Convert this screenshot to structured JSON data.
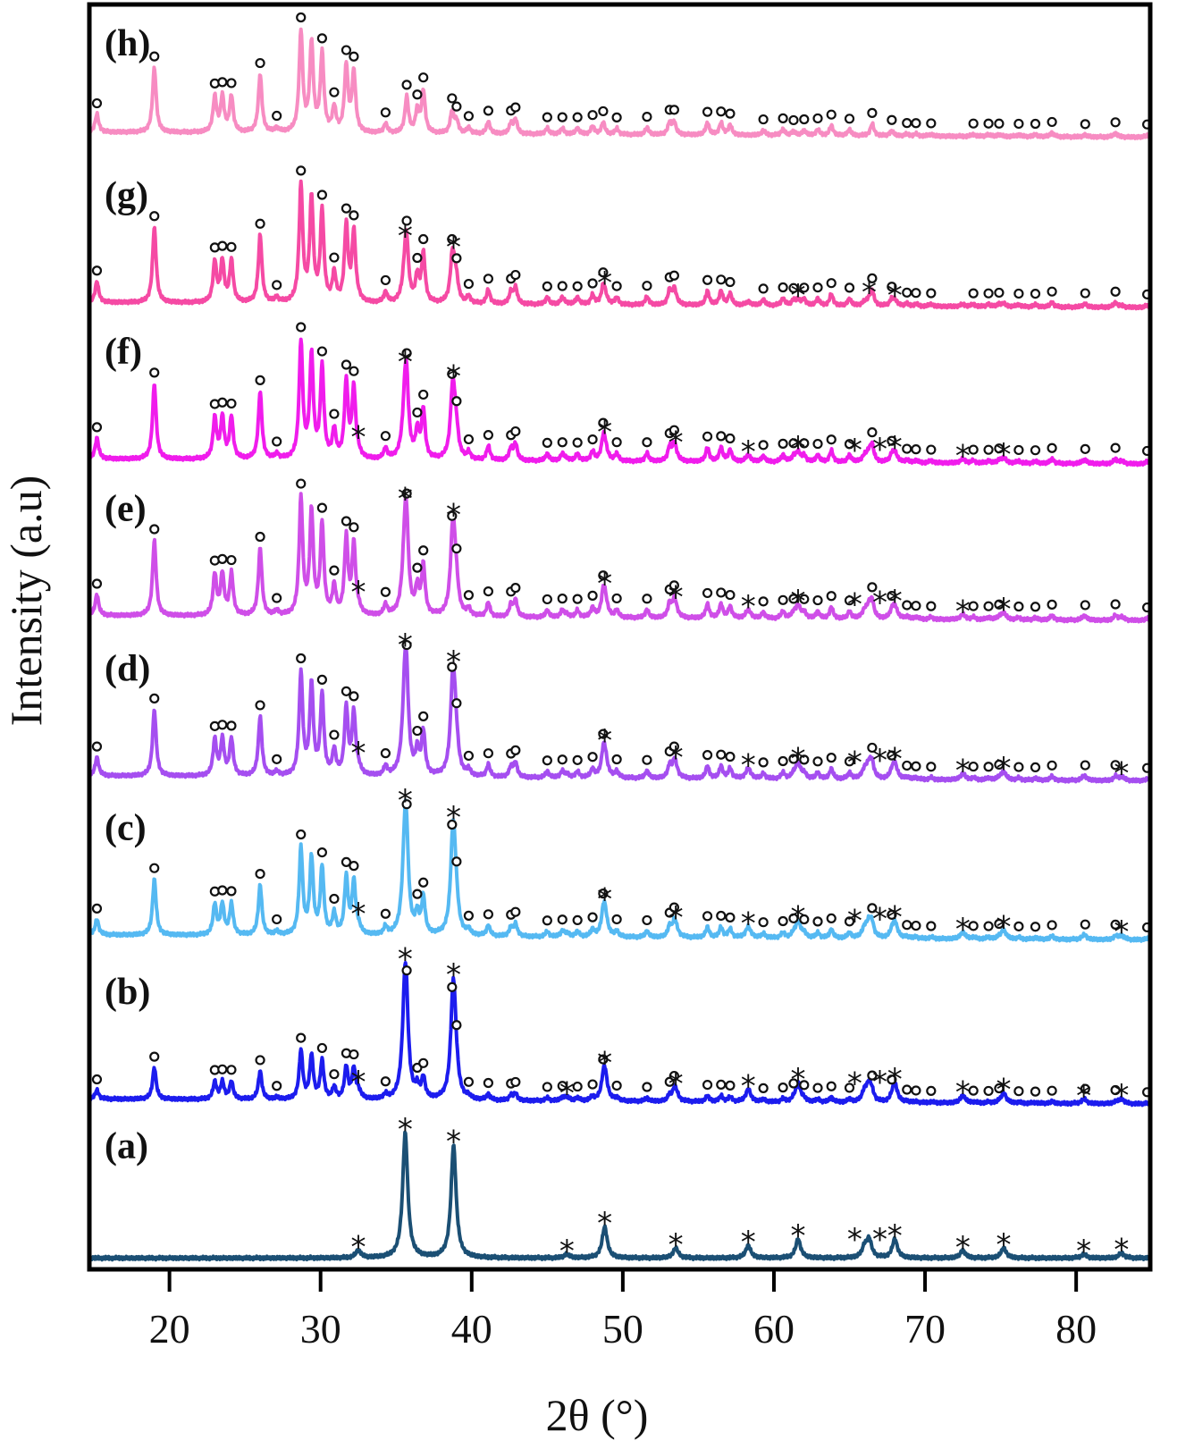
{
  "chart_data": {
    "type": "line",
    "xlabel": "2θ (°)",
    "ylabel": "Intensity (a.u)",
    "xlim": [
      14.7,
      84.9
    ],
    "ylim": [
      0,
      10.1
    ],
    "x_ticks": [
      20,
      30,
      40,
      50,
      60,
      70,
      80
    ],
    "x_tick_labels": [
      "20",
      "30",
      "40",
      "50",
      "60",
      "70",
      "80"
    ],
    "y_ticks": [],
    "grid": false,
    "legend": "none",
    "phases": [
      {
        "id": "star",
        "marker": "*",
        "peaks": [
          [
            32.5,
            0.06
          ],
          [
            35.6,
            1.0
          ],
          [
            38.8,
            0.9
          ],
          [
            46.3,
            0.03
          ],
          [
            48.8,
            0.25
          ],
          [
            53.5,
            0.08
          ],
          [
            58.3,
            0.1
          ],
          [
            61.6,
            0.15
          ],
          [
            66.0,
            0.08
          ],
          [
            66.3,
            0.14
          ],
          [
            68.0,
            0.15
          ],
          [
            72.5,
            0.06
          ],
          [
            75.2,
            0.08
          ],
          [
            80.5,
            0.03
          ],
          [
            83.0,
            0.04
          ]
        ]
      },
      {
        "id": "circle",
        "marker": "o",
        "peaks": [
          [
            15.2,
            0.18
          ],
          [
            19.0,
            0.65
          ],
          [
            23.0,
            0.35
          ],
          [
            23.5,
            0.35
          ],
          [
            24.1,
            0.36
          ],
          [
            26.0,
            0.58
          ],
          [
            27.1,
            0.04
          ],
          [
            28.7,
            1.0
          ],
          [
            29.4,
            0.88,
            false
          ],
          [
            30.1,
            0.78
          ],
          [
            30.9,
            0.24
          ],
          [
            31.7,
            0.66
          ],
          [
            32.2,
            0.6
          ],
          [
            34.3,
            0.09
          ],
          [
            35.7,
            0.36
          ],
          [
            36.4,
            0.22
          ],
          [
            36.8,
            0.42
          ],
          [
            38.7,
            0.22
          ],
          [
            39.0,
            0.12
          ],
          [
            39.8,
            0.06
          ],
          [
            41.1,
            0.12
          ],
          [
            42.6,
            0.1
          ],
          [
            42.9,
            0.14
          ],
          [
            45.0,
            0.06
          ],
          [
            46.0,
            0.06
          ],
          [
            47.0,
            0.06
          ],
          [
            48.0,
            0.08
          ],
          [
            48.7,
            0.12
          ],
          [
            49.6,
            0.06
          ],
          [
            51.6,
            0.07
          ],
          [
            53.1,
            0.12
          ],
          [
            53.4,
            0.12
          ],
          [
            55.6,
            0.12
          ],
          [
            56.5,
            0.12
          ],
          [
            57.1,
            0.1
          ],
          [
            59.3,
            0.05
          ],
          [
            60.6,
            0.06
          ],
          [
            61.3,
            0.04
          ],
          [
            62.0,
            0.05
          ],
          [
            62.9,
            0.06
          ],
          [
            63.8,
            0.1
          ],
          [
            65.0,
            0.06
          ],
          [
            66.5,
            0.12
          ],
          [
            67.8,
            0.05
          ],
          [
            68.8,
            0.02
          ],
          [
            69.4,
            0.02
          ],
          [
            70.4,
            0.02
          ],
          [
            73.2,
            0.02
          ],
          [
            74.2,
            0.02
          ],
          [
            74.9,
            0.02
          ],
          [
            76.2,
            0.02
          ],
          [
            77.3,
            0.02
          ],
          [
            78.4,
            0.04
          ],
          [
            80.6,
            0.02
          ],
          [
            82.6,
            0.04
          ],
          [
            84.7,
            0.02
          ]
        ]
      }
    ],
    "series": [
      {
        "name": "(a)",
        "color": "#1b4f74",
        "offset": 0.09,
        "star_scale": 1.0,
        "circle_scale": 0.0
      },
      {
        "name": "(b)",
        "color": "#1c1cee",
        "offset": 1.32,
        "star_scale": 1.0,
        "circle_scale": 0.39
      },
      {
        "name": "(c)",
        "color": "#55b9f2",
        "offset": 2.63,
        "star_scale": 0.88,
        "circle_scale": 0.69
      },
      {
        "name": "(d)",
        "color": "#a54ef0",
        "offset": 3.9,
        "star_scale": 0.82,
        "circle_scale": 0.82
      },
      {
        "name": "(e)",
        "color": "#cf4ee8",
        "offset": 5.18,
        "star_scale": 0.68,
        "circle_scale": 0.93
      },
      {
        "name": "(f)",
        "color": "#f01cec",
        "offset": 6.43,
        "star_scale": 0.52,
        "circle_scale": 0.93
      },
      {
        "name": "(g)",
        "color": "#f54aa4",
        "offset": 7.68,
        "star_scale": 0.28,
        "circle_scale": 0.93
      },
      {
        "name": "(h)",
        "color": "#f78cc2",
        "offset": 9.04,
        "star_scale": 0.0,
        "circle_scale": 0.8
      }
    ]
  }
}
